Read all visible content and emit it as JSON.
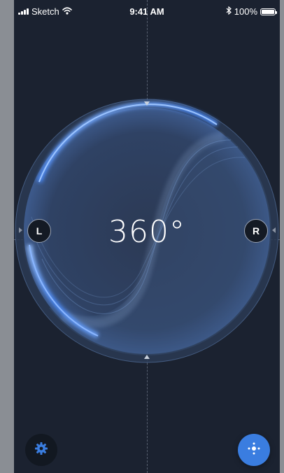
{
  "status_bar": {
    "carrier": "Sketch",
    "time": "9:41 AM",
    "battery_text": "100%",
    "icons": [
      "signal-icon",
      "wifi-icon",
      "bluetooth-icon",
      "battery-icon"
    ]
  },
  "dial": {
    "angle_label": "360°",
    "left_handle_label": "L",
    "right_handle_label": "R",
    "accent_color": "#4a8cff"
  },
  "bottom_bar": {
    "settings_icon": "gear-icon",
    "action_icon": "joystick-icon",
    "action_color": "#3a7de0"
  },
  "colors": {
    "background": "#1b2230",
    "frame": "#8a8e94"
  }
}
